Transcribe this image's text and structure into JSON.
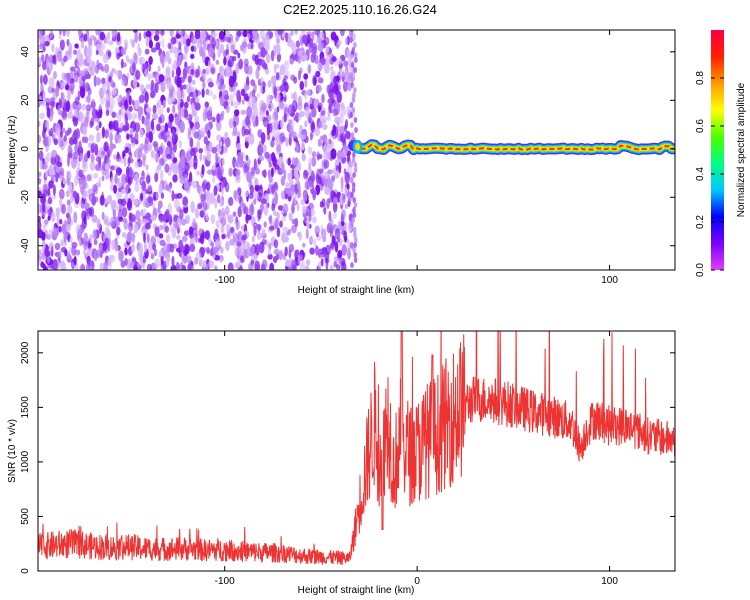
{
  "title": "C2E2.2025.110.16.26.G24",
  "chart_data": [
    {
      "type": "heatmap",
      "xlabel": "Height of straight line (km)",
      "ylabel": "Frequency (Hz)",
      "xlim": [
        -197,
        134
      ],
      "ylim": [
        -50,
        49
      ],
      "xticks": [
        -100,
        0,
        100
      ],
      "xtick_labels": [
        "-100",
        "",
        "100"
      ],
      "yticks": [
        -40,
        -20,
        0,
        20,
        40
      ],
      "yticklabels": [
        "-40",
        "-20",
        "0",
        "20",
        "40"
      ],
      "noise_region_x": [
        -197,
        -33
      ],
      "noise_colors": [
        "#7a10ee",
        "#9a48f2",
        "#bb85f6",
        "#d6b6fa"
      ],
      "signal_x_start": -33,
      "signal_x_end": 134,
      "signal_frequency_hz": 0,
      "signal_colors": [
        "#4f2cff",
        "#00b8ff",
        "#38ff38",
        "#ffd800",
        "#ff2a00"
      ],
      "colorbar": {
        "label": "Normalized spectral amplitude",
        "range": [
          0,
          1
        ],
        "ticks": [
          0.0,
          0.2,
          0.4,
          0.6,
          0.8
        ],
        "tick_labels": [
          "0.0",
          "0.2",
          "0.4",
          "0.6",
          "0.8"
        ],
        "colors": [
          "#e040fb",
          "#7c00ff",
          "#0000ff",
          "#00c8ff",
          "#00ff80",
          "#4cff00",
          "#ffff00",
          "#ff9900",
          "#ff2000",
          "#ff0040"
        ]
      },
      "grid": false
    },
    {
      "type": "line",
      "xlabel": "Height of straight line (km)",
      "ylabel": "SNR (10 * v/v)",
      "xlim": [
        -197,
        134
      ],
      "ylim": [
        0,
        2200
      ],
      "xticks": [
        -100,
        0,
        100
      ],
      "xtick_labels": [
        "-100",
        "0",
        "100"
      ],
      "yticks": [
        0,
        500,
        1000,
        1500,
        2000
      ],
      "yticklabels": [
        "0",
        "500",
        "1000",
        "1500",
        "2000"
      ],
      "color": "#ee3333",
      "grid": false,
      "series": [
        {
          "x": [
            -197,
            -190,
            -180,
            -170,
            -160,
            -150,
            -140,
            -130,
            -120,
            -110,
            -100,
            -90,
            -80,
            -70,
            -60,
            -50,
            -40,
            -35,
            -25,
            -22,
            -20,
            -18,
            -15,
            -12,
            -9,
            -6,
            -3,
            0,
            5,
            10,
            15,
            20,
            25,
            30,
            40,
            50,
            60,
            70,
            80,
            85,
            88,
            92,
            100,
            110,
            120,
            134
          ],
          "y": [
            220,
            235,
            250,
            230,
            215,
            220,
            205,
            200,
            205,
            190,
            195,
            180,
            170,
            165,
            140,
            130,
            120,
            115,
            1100,
            1350,
            1050,
            1150,
            1400,
            900,
            1250,
            1150,
            1050,
            1100,
            1200,
            1250,
            1350,
            1450,
            1530,
            1580,
            1560,
            1520,
            1460,
            1420,
            1360,
            1120,
            1300,
            1400,
            1330,
            1330,
            1240,
            1200
          ]
        }
      ]
    }
  ]
}
